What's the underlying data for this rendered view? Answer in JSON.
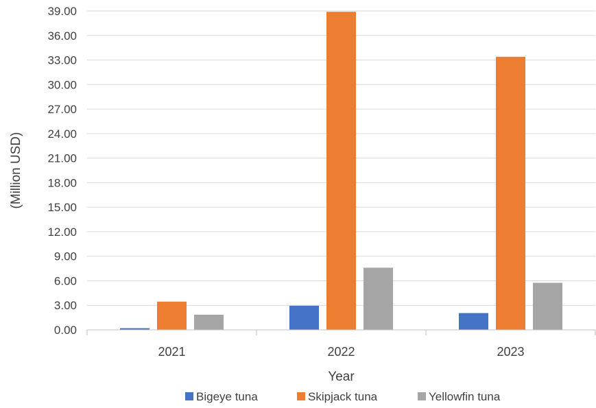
{
  "chart_data": {
    "type": "bar",
    "title": "",
    "xlabel": "Year",
    "ylabel": "(Million USD)",
    "categories": [
      "2021",
      "2022",
      "2023"
    ],
    "series": [
      {
        "name": "Bigeye tuna",
        "color": "#4472c4",
        "values": [
          0.2,
          2.95,
          2.05
        ]
      },
      {
        "name": "Skipjack tuna",
        "color": "#ed7d31",
        "values": [
          3.45,
          38.9,
          33.4
        ]
      },
      {
        "name": "Yellowfin tuna",
        "color": "#a5a5a5",
        "values": [
          1.85,
          7.6,
          5.75
        ]
      }
    ],
    "ylim": [
      0,
      39
    ],
    "yticks": [
      "0.00",
      "3.00",
      "6.00",
      "9.00",
      "12.00",
      "15.00",
      "18.00",
      "21.00",
      "24.00",
      "27.00",
      "30.00",
      "33.00",
      "36.00",
      "39.00"
    ],
    "grid": true,
    "legend": "bottom"
  }
}
